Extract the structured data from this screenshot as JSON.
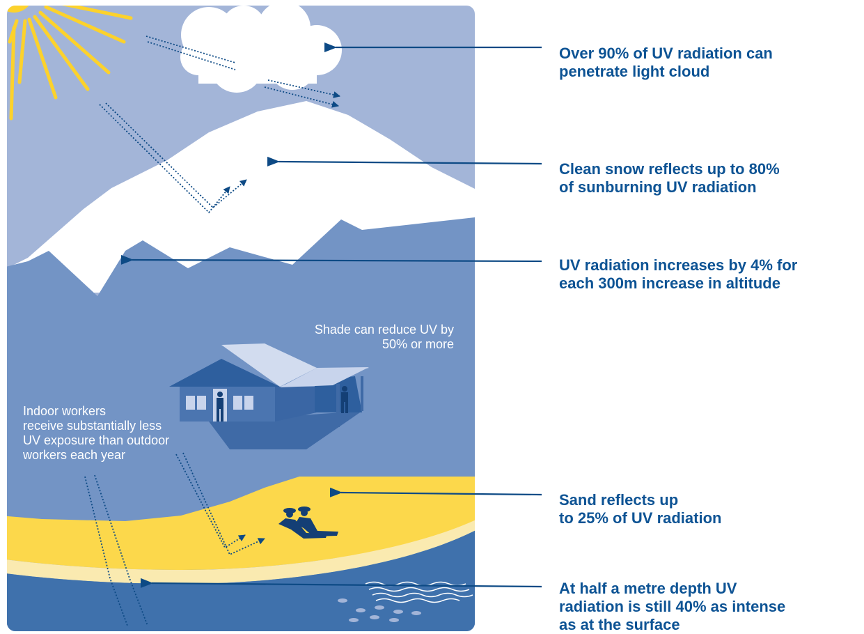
{
  "callouts": {
    "cloud": "Over 90% of UV radiation can\npenetrate light cloud",
    "snow": "Clean snow reflects up to 80%\nof sunburning UV radiation",
    "altitude": "UV radiation increases by 4% for\neach 300m increase in altitude",
    "sand": "Sand reflects up\nto 25% of UV radiation",
    "water": "At half a metre depth UV\nradiation is still 40% as intense\nas at the surface"
  },
  "notes": {
    "shade": "Shade can reduce UV by\n50% or more",
    "indoor": "Indoor workers\nreceive substantially less\nUV exposure than outdoor\nworkers each year"
  },
  "colors": {
    "sky": "#a3b5d8",
    "mountain": "#7394c5",
    "snow": "#ffffff",
    "sand": "#fcd84b",
    "water": "#3f71ac",
    "sun": "#fcd22c",
    "callout_text": "#0d5394",
    "arrow": "#0d4a85"
  }
}
